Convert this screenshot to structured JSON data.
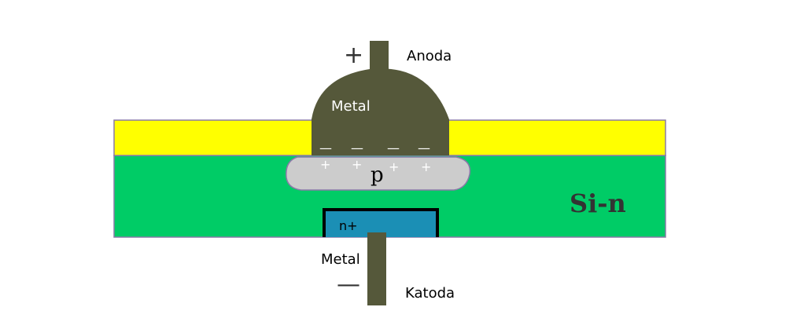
{
  "labels": {
    "anode": "Anoda",
    "cathode": "Katoda",
    "metal_top": "Metal",
    "metal_bottom": "Metal",
    "p_region": "p",
    "substrate": "Si-n",
    "n_plus": "n+",
    "plus_sign": "+",
    "minus_sign": "—",
    "negative_charge": "—",
    "positive_charge": "+"
  },
  "colors": {
    "oxide": "#ffff00",
    "substrate": "#00cc66",
    "p_region": "#cccccc",
    "metal": "#55583a",
    "n_plus": "#1b8fb5",
    "outline": "#7a6a9a"
  }
}
